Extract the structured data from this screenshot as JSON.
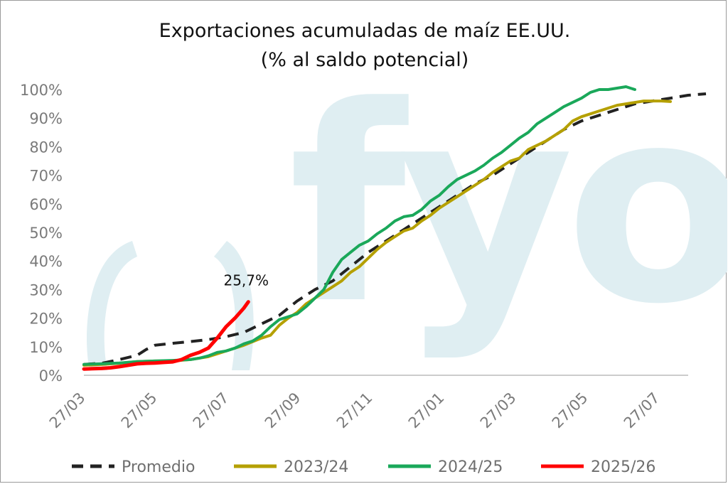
{
  "chart_data": {
    "type": "line",
    "title": "Exportaciones acumuladas de maíz EE.UU.",
    "subtitle": "(% al saldo potencial)",
    "xlabel": "",
    "ylabel": "",
    "x_ticks": [
      "27/03",
      "27/05",
      "27/07",
      "27/09",
      "27/11",
      "27/01",
      "27/03",
      "27/05",
      "27/07"
    ],
    "y_ticks": [
      "0%",
      "10%",
      "20%",
      "30%",
      "40%",
      "50%",
      "60%",
      "70%",
      "80%",
      "90%",
      "100%"
    ],
    "ylim": [
      0,
      100
    ],
    "grid": false,
    "legend_position": "bottom",
    "watermark": "fyo",
    "annotation": {
      "text": "25,7%",
      "series": "2025/26"
    },
    "series": [
      {
        "name": "Promedio",
        "color": "#222222",
        "dash": true,
        "points": [
          [
            0,
            3.8
          ],
          [
            2,
            4.2
          ],
          [
            4,
            5.5
          ],
          [
            6,
            7
          ],
          [
            7,
            9
          ],
          [
            8,
            10.5
          ],
          [
            10,
            11.2
          ],
          [
            12,
            11.8
          ],
          [
            14,
            12.5
          ],
          [
            16,
            13.5
          ],
          [
            18,
            15
          ],
          [
            20,
            18
          ],
          [
            22,
            21
          ],
          [
            24,
            26
          ],
          [
            26,
            30
          ],
          [
            28,
            33
          ],
          [
            30,
            38
          ],
          [
            32,
            43
          ],
          [
            34,
            47
          ],
          [
            36,
            51
          ],
          [
            38,
            55
          ],
          [
            40,
            59
          ],
          [
            42,
            63
          ],
          [
            44,
            67
          ],
          [
            46,
            70
          ],
          [
            48,
            74
          ],
          [
            50,
            78
          ],
          [
            52,
            82
          ],
          [
            54,
            86
          ],
          [
            56,
            89
          ],
          [
            58,
            91
          ],
          [
            60,
            93
          ],
          [
            62,
            95
          ],
          [
            64,
            96
          ],
          [
            66,
            97
          ],
          [
            68,
            98
          ],
          [
            70,
            98.5
          ]
        ]
      },
      {
        "name": "2023/24",
        "color": "#b5a000",
        "dash": false,
        "points": [
          [
            0,
            3.5
          ],
          [
            2,
            3.8
          ],
          [
            4,
            4.2
          ],
          [
            6,
            4.8
          ],
          [
            8,
            5
          ],
          [
            10,
            5
          ],
          [
            12,
            5.5
          ],
          [
            14,
            6.5
          ],
          [
            16,
            8.5
          ],
          [
            18,
            10.5
          ],
          [
            20,
            13
          ],
          [
            21,
            14
          ],
          [
            22,
            17.5
          ],
          [
            23,
            20
          ],
          [
            24,
            22
          ],
          [
            25,
            25
          ],
          [
            26,
            27
          ],
          [
            27,
            29
          ],
          [
            28,
            31
          ],
          [
            29,
            33
          ],
          [
            30,
            36
          ],
          [
            31,
            38
          ],
          [
            32,
            41
          ],
          [
            33,
            44
          ],
          [
            34,
            46.5
          ],
          [
            35,
            48.5
          ],
          [
            36,
            50.5
          ],
          [
            37,
            51.5
          ],
          [
            38,
            54
          ],
          [
            39,
            56
          ],
          [
            40,
            58.5
          ],
          [
            41,
            60.5
          ],
          [
            42,
            62.5
          ],
          [
            43,
            64.5
          ],
          [
            44,
            66.5
          ],
          [
            45,
            68.5
          ],
          [
            46,
            71
          ],
          [
            47,
            73
          ],
          [
            48,
            75
          ],
          [
            49,
            76
          ],
          [
            50,
            79
          ],
          [
            51,
            80.5
          ],
          [
            52,
            82
          ],
          [
            53,
            84
          ],
          [
            54,
            86
          ],
          [
            55,
            89
          ],
          [
            56,
            90.5
          ],
          [
            57,
            91.5
          ],
          [
            58,
            92.5
          ],
          [
            59,
            93.5
          ],
          [
            60,
            94.5
          ],
          [
            61,
            95
          ],
          [
            62,
            95.5
          ],
          [
            63,
            96
          ],
          [
            64,
            96
          ],
          [
            65,
            96
          ],
          [
            66,
            95.8
          ]
        ]
      },
      {
        "name": "2024/25",
        "color": "#1aa85a",
        "dash": false,
        "points": [
          [
            0,
            3.8
          ],
          [
            2,
            4
          ],
          [
            4,
            4.3
          ],
          [
            6,
            4.8
          ],
          [
            8,
            5
          ],
          [
            10,
            5.2
          ],
          [
            12,
            5.5
          ],
          [
            13,
            6
          ],
          [
            14,
            6.8
          ],
          [
            15,
            8
          ],
          [
            16,
            8.5
          ],
          [
            17,
            9.5
          ],
          [
            18,
            11
          ],
          [
            19,
            12
          ],
          [
            20,
            14
          ],
          [
            21,
            17
          ],
          [
            22,
            19.5
          ],
          [
            23,
            20.5
          ],
          [
            24,
            21.5
          ],
          [
            25,
            24
          ],
          [
            26,
            27
          ],
          [
            27,
            30
          ],
          [
            28,
            36
          ],
          [
            29,
            40.5
          ],
          [
            30,
            43
          ],
          [
            31,
            45.5
          ],
          [
            32,
            47
          ],
          [
            33,
            49.5
          ],
          [
            34,
            51.5
          ],
          [
            35,
            54
          ],
          [
            36,
            55.5
          ],
          [
            37,
            56
          ],
          [
            38,
            58
          ],
          [
            39,
            61
          ],
          [
            40,
            63
          ],
          [
            41,
            66
          ],
          [
            42,
            68.5
          ],
          [
            43,
            70
          ],
          [
            44,
            71.5
          ],
          [
            45,
            73.5
          ],
          [
            46,
            76
          ],
          [
            47,
            78
          ],
          [
            48,
            80.5
          ],
          [
            49,
            83
          ],
          [
            50,
            85
          ],
          [
            51,
            88
          ],
          [
            52,
            90
          ],
          [
            53,
            92
          ],
          [
            54,
            94
          ],
          [
            55,
            95.5
          ],
          [
            56,
            97
          ],
          [
            57,
            99
          ],
          [
            58,
            100
          ],
          [
            59,
            100
          ],
          [
            60,
            100.5
          ],
          [
            61,
            101
          ],
          [
            62,
            100
          ]
        ]
      },
      {
        "name": "2025/26",
        "color": "#ff0000",
        "dash": false,
        "points": [
          [
            0,
            2.2
          ],
          [
            1,
            2.3
          ],
          [
            2,
            2.4
          ],
          [
            3,
            2.6
          ],
          [
            4,
            3
          ],
          [
            5,
            3.5
          ],
          [
            6,
            4
          ],
          [
            7,
            4.2
          ],
          [
            8,
            4.3
          ],
          [
            9,
            4.5
          ],
          [
            10,
            4.7
          ],
          [
            11,
            5.5
          ],
          [
            12,
            7
          ],
          [
            13,
            8
          ],
          [
            14,
            9.5
          ],
          [
            15,
            13
          ],
          [
            16,
            17
          ],
          [
            17,
            20
          ],
          [
            18,
            23.5
          ],
          [
            18.5,
            25.7
          ]
        ]
      }
    ]
  }
}
